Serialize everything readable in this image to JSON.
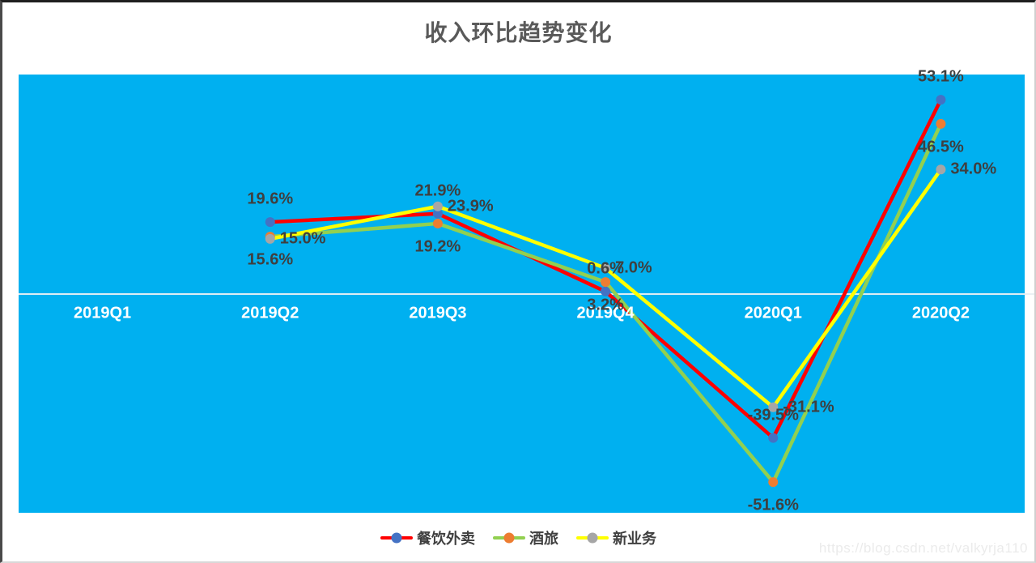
{
  "title": "收入环比趋势变化",
  "watermark": "https://blog.csdn.net/valkyrja110",
  "colors": {
    "plot_background": "#00B0F0",
    "axis_line": "#E9F0F3",
    "axis_label_text": "#FFFFFF",
    "data_label_text": "#3F3F3F",
    "title_text": "#595959"
  },
  "chart_data": {
    "type": "line",
    "title": "收入环比趋势变化",
    "categories": [
      "2019Q1",
      "2019Q2",
      "2019Q3",
      "2019Q4",
      "2020Q1",
      "2020Q2"
    ],
    "series": [
      {
        "name": "餐饮外卖",
        "line_color": "#FF0000",
        "marker_color": "#4472C4",
        "label_position": "above",
        "values": [
          null,
          19.6,
          21.9,
          0.6,
          -39.5,
          53.1
        ]
      },
      {
        "name": "酒旅",
        "line_color": "#92D050",
        "marker_color": "#ED7D31",
        "label_position": "below",
        "values": [
          null,
          15.6,
          19.2,
          3.2,
          -51.6,
          46.5
        ]
      },
      {
        "name": "新业务",
        "line_color": "#FFFF00",
        "marker_color": "#A6A6A6",
        "label_position": "right",
        "values": [
          null,
          15.0,
          23.9,
          7.0,
          -31.1,
          34.0
        ]
      }
    ],
    "label_suffix": "%",
    "label_decimals": 1,
    "ylim": [
      -60,
      60
    ],
    "xlabel": "",
    "ylabel": "",
    "grid": "zero-axis-only",
    "legend_position": "bottom"
  }
}
